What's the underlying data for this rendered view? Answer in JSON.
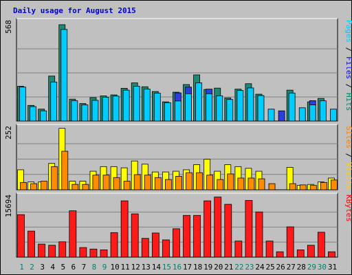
{
  "chart_data": [
    {
      "type": "bar",
      "title": "Daily usage for August 2015",
      "max_label": "568",
      "categories": [
        "1",
        "2",
        "3",
        "4",
        "5",
        "6",
        "7",
        "8",
        "9",
        "10",
        "11",
        "12",
        "13",
        "14",
        "15",
        "16",
        "17",
        "18",
        "19",
        "20",
        "21",
        "22",
        "23",
        "24",
        "25",
        "26",
        "27",
        "28",
        "29",
        "30",
        "31"
      ],
      "weekend_days": [
        "1",
        "2",
        "8",
        "9",
        "15",
        "16",
        "22",
        "23",
        "29",
        "30"
      ],
      "ylim": [
        0,
        568
      ],
      "legend": [
        {
          "text": "Hits",
          "color": "#00806b"
        },
        {
          "text": "Files",
          "color": "#0000ff"
        },
        {
          "text": "Pages",
          "color": "#00c9ff"
        }
      ],
      "series": [
        {
          "name": "Hits",
          "color": "#1e8a74",
          "values": [
            205,
            92,
            70,
            265,
            568,
            129,
            103,
            138,
            148,
            154,
            193,
            225,
            202,
            174,
            113,
            170,
            215,
            272,
            186,
            194,
            136,
            188,
            220,
            158,
            0,
            0,
            182,
            0,
            113,
            133,
            0
          ]
        },
        {
          "name": "Files",
          "color": "#2b3fe0",
          "values": [
            0,
            0,
            0,
            0,
            0,
            0,
            0,
            0,
            0,
            0,
            0,
            0,
            0,
            0,
            0,
            166,
            200,
            0,
            188,
            0,
            0,
            0,
            0,
            0,
            0,
            60,
            0,
            0,
            120,
            0,
            0
          ]
        },
        {
          "name": "Pages",
          "color": "#00ccff",
          "values": [
            200,
            85,
            60,
            230,
            540,
            120,
            95,
            122,
            140,
            147,
            182,
            205,
            188,
            164,
            108,
            118,
            161,
            225,
            161,
            149,
            127,
            180,
            195,
            150,
            70,
            0,
            165,
            78,
            95,
            119,
            70
          ]
        }
      ]
    },
    {
      "type": "bar",
      "max_label": "252",
      "categories": [
        "1",
        "2",
        "3",
        "4",
        "5",
        "6",
        "7",
        "8",
        "9",
        "10",
        "11",
        "12",
        "13",
        "14",
        "15",
        "16",
        "17",
        "18",
        "19",
        "20",
        "21",
        "22",
        "23",
        "24",
        "25",
        "26",
        "27",
        "28",
        "29",
        "30",
        "31"
      ],
      "ylim": [
        0,
        252
      ],
      "legend": [
        {
          "text": "Visits",
          "color": "#ffcc00"
        },
        {
          "text": "Sites",
          "color": "#ff8000"
        }
      ],
      "series": [
        {
          "name": "Visits",
          "color": "#ffff00",
          "values": [
            82,
            32,
            32,
            108,
            252,
            35,
            35,
            76,
            95,
            95,
            90,
            118,
            105,
            73,
            73,
            76,
            82,
            103,
            125,
            76,
            103,
            95,
            88,
            76,
            0,
            0,
            92,
            18,
            22,
            32,
            48
          ]
        },
        {
          "name": "Sites",
          "color": "#ff8c00",
          "values": [
            30,
            25,
            35,
            95,
            158,
            22,
            22,
            60,
            60,
            50,
            35,
            62,
            60,
            50,
            42,
            55,
            70,
            70,
            60,
            42,
            65,
            48,
            48,
            45,
            25,
            0,
            25,
            20,
            18,
            30,
            40
          ]
        }
      ]
    },
    {
      "type": "bar",
      "max_label": "15694",
      "categories": [
        "1",
        "2",
        "3",
        "4",
        "5",
        "6",
        "7",
        "8",
        "9",
        "10",
        "11",
        "12",
        "13",
        "14",
        "15",
        "16",
        "17",
        "18",
        "19",
        "20",
        "21",
        "22",
        "23",
        "24",
        "25",
        "26",
        "27",
        "28",
        "29",
        "30",
        "31"
      ],
      "ylim": [
        0,
        15694
      ],
      "legend": [
        {
          "text": "KBytes",
          "color": "#ff0000"
        }
      ],
      "series": [
        {
          "name": "KBytes",
          "color": "#ff1a1a",
          "values": [
            11100,
            6800,
            3400,
            3100,
            4000,
            12100,
            2500,
            2100,
            1900,
            6400,
            14700,
            11300,
            4900,
            6300,
            4500,
            7400,
            10900,
            10900,
            14700,
            15694,
            13800,
            4200,
            14800,
            11800,
            4200,
            1400,
            7900,
            1900,
            3100,
            6500,
            1400
          ]
        }
      ]
    }
  ]
}
